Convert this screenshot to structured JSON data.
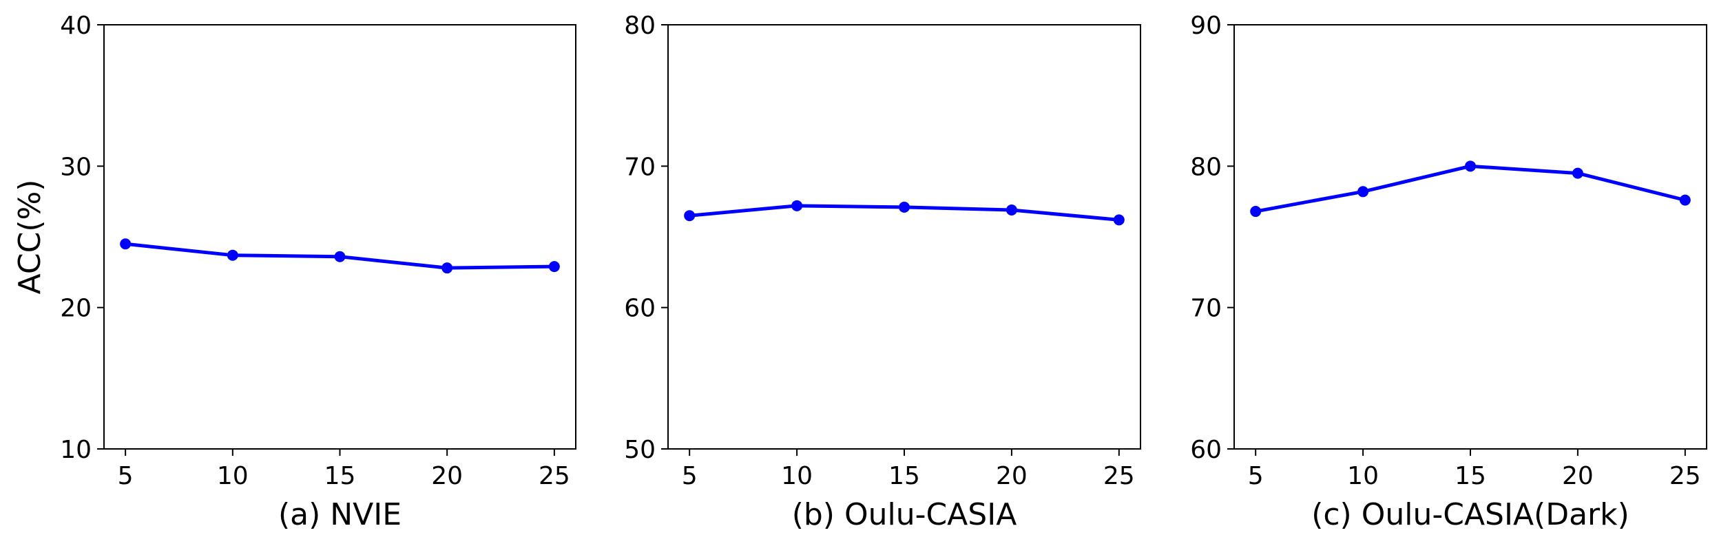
{
  "chart_data": [
    {
      "type": "line",
      "subtitle": "(a) NVIE",
      "ylabel": "ACC(%)",
      "x": [
        5,
        10,
        15,
        20,
        25
      ],
      "xticks": [
        5,
        10,
        15,
        20,
        25
      ],
      "xlim": [
        4,
        26
      ],
      "ylim": [
        10,
        40
      ],
      "yticks": [
        10,
        20,
        30,
        40
      ],
      "series": [
        {
          "color": "#0000ff",
          "values": [
            24.5,
            23.7,
            23.6,
            22.8,
            22.9
          ]
        }
      ],
      "grid": false
    },
    {
      "type": "line",
      "subtitle": "(b) Oulu-CASIA",
      "ylabel": "",
      "x": [
        5,
        10,
        15,
        20,
        25
      ],
      "xticks": [
        5,
        10,
        15,
        20,
        25
      ],
      "xlim": [
        4,
        26
      ],
      "ylim": [
        50,
        80
      ],
      "yticks": [
        50,
        60,
        70,
        80
      ],
      "series": [
        {
          "color": "#0000ff",
          "values": [
            66.5,
            67.2,
            67.1,
            66.9,
            66.2
          ]
        }
      ],
      "grid": false
    },
    {
      "type": "line",
      "subtitle": "(c) Oulu-CASIA(Dark)",
      "ylabel": "",
      "x": [
        5,
        10,
        15,
        20,
        25
      ],
      "xticks": [
        5,
        10,
        15,
        20,
        25
      ],
      "xlim": [
        4,
        26
      ],
      "ylim": [
        60,
        90
      ],
      "yticks": [
        60,
        70,
        80,
        90
      ],
      "series": [
        {
          "color": "#0000ff",
          "values": [
            76.8,
            78.2,
            80.0,
            79.5,
            77.6
          ]
        }
      ],
      "grid": false
    }
  ]
}
